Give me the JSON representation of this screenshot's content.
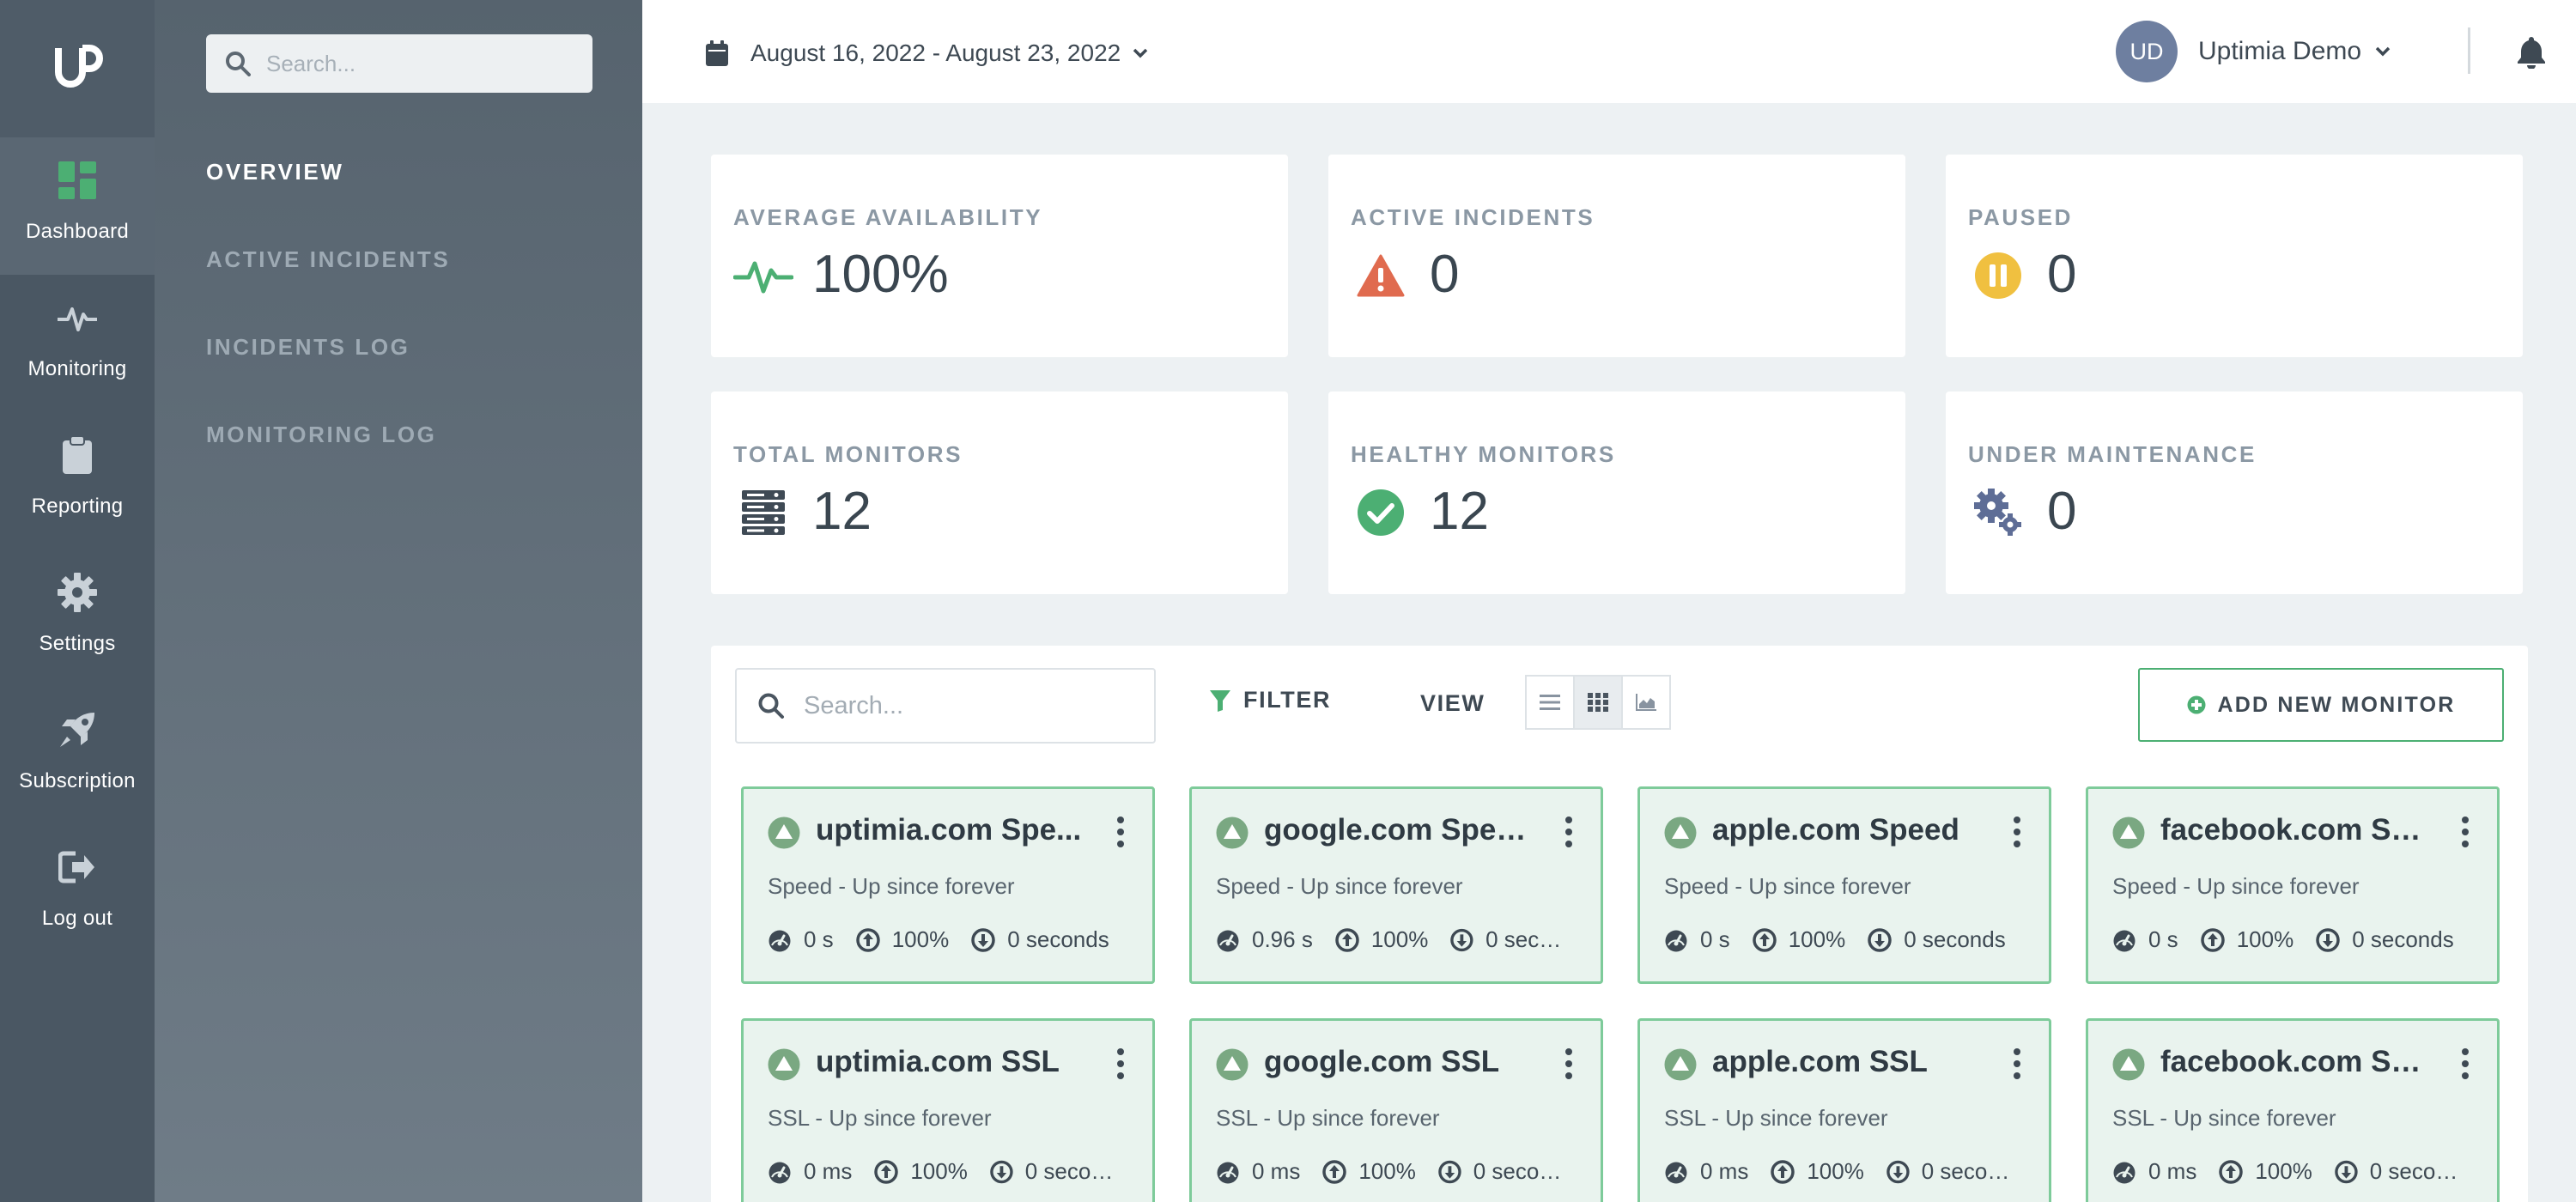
{
  "rail": {
    "items": [
      {
        "label": "Dashboard",
        "icon": "dashboard-icon"
      },
      {
        "label": "Monitoring",
        "icon": "pulse-icon"
      },
      {
        "label": "Reporting",
        "icon": "clipboard-icon"
      },
      {
        "label": "Settings",
        "icon": "gear-icon"
      },
      {
        "label": "Subscription",
        "icon": "rocket-icon"
      },
      {
        "label": "Log out",
        "icon": "logout-icon"
      }
    ]
  },
  "sidebar": {
    "search_placeholder": "Search...",
    "nav": [
      "OVERVIEW",
      "ACTIVE INCIDENTS",
      "INCIDENTS LOG",
      "MONITORING LOG"
    ]
  },
  "topbar": {
    "date_range": "August 16, 2022 - August 23, 2022",
    "avatar_initials": "UD",
    "user_name": "Uptimia Demo"
  },
  "stats": [
    {
      "title": "AVERAGE AVAILABILITY",
      "value": "100%",
      "icon": "pulse-icon",
      "color": "#4caf73"
    },
    {
      "title": "ACTIVE INCIDENTS",
      "value": "0",
      "icon": "warning-icon",
      "color": "#e06b4f"
    },
    {
      "title": "PAUSED",
      "value": "0",
      "icon": "pause-icon",
      "color": "#f0c040"
    },
    {
      "title": "TOTAL MONITORS",
      "value": "12",
      "icon": "server-icon",
      "color": "#3f4a55"
    },
    {
      "title": "HEALTHY MONITORS",
      "value": "12",
      "icon": "check-circle-icon",
      "color": "#4caf73"
    },
    {
      "title": "UNDER MAINTENANCE",
      "value": "0",
      "icon": "gears-icon",
      "color": "#5e6d96"
    }
  ],
  "toolbar": {
    "search_placeholder": "Search...",
    "filter_label": "FILTER",
    "view_label": "VIEW",
    "add_label": "ADD NEW MONITOR"
  },
  "monitors": [
    {
      "title": "uptimia.com Spe...",
      "subtitle": "Speed - Up since forever",
      "response": "0 s",
      "uptime": "100%",
      "downtime": "0 seconds"
    },
    {
      "title": "google.com Speed",
      "subtitle": "Speed - Up since forever",
      "response": "0.96 s",
      "uptime": "100%",
      "downtime": "0 seco..."
    },
    {
      "title": "apple.com Speed",
      "subtitle": "Speed - Up since forever",
      "response": "0 s",
      "uptime": "100%",
      "downtime": "0 seconds"
    },
    {
      "title": "facebook.com Sp...",
      "subtitle": "Speed - Up since forever",
      "response": "0 s",
      "uptime": "100%",
      "downtime": "0 seconds"
    },
    {
      "title": "uptimia.com SSL",
      "subtitle": "SSL - Up since forever",
      "response": "0 ms",
      "uptime": "100%",
      "downtime": "0 secon..."
    },
    {
      "title": "google.com SSL",
      "subtitle": "SSL - Up since forever",
      "response": "0 ms",
      "uptime": "100%",
      "downtime": "0 secon..."
    },
    {
      "title": "apple.com SSL",
      "subtitle": "SSL - Up since forever",
      "response": "0 ms",
      "uptime": "100%",
      "downtime": "0 secon..."
    },
    {
      "title": "facebook.com SSL",
      "subtitle": "SSL - Up since forever",
      "response": "0 ms",
      "uptime": "100%",
      "downtime": "0 secon..."
    }
  ],
  "colors": {
    "accent_green": "#4caf73",
    "card_bg": "#e9f3ee",
    "card_border": "#7ecb9a",
    "rail_bg": "#4a5763"
  }
}
